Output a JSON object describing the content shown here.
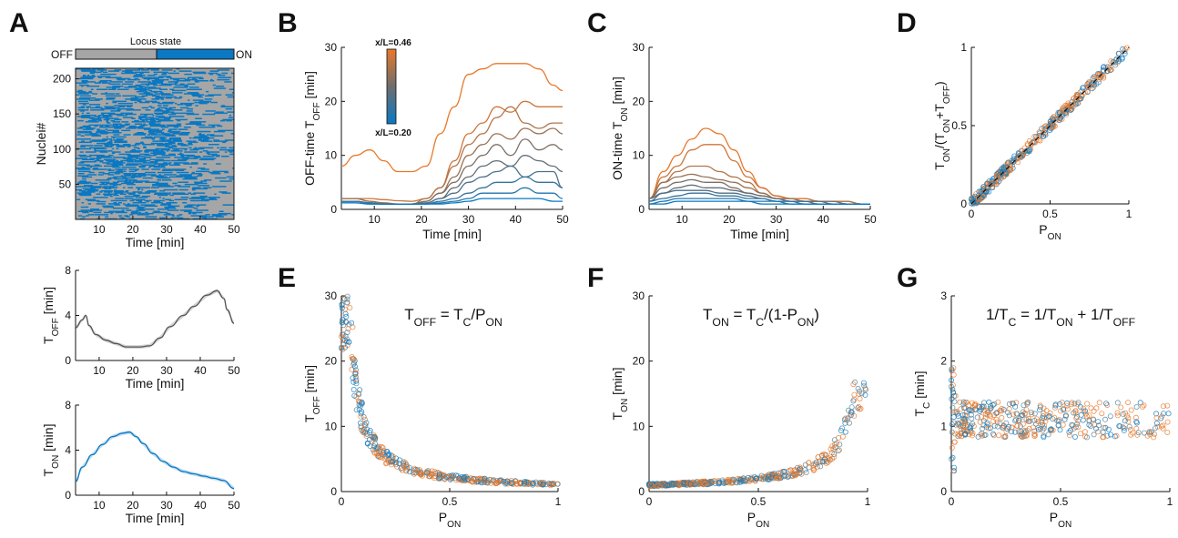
{
  "colors": {
    "off": "#a6a6a6",
    "on": "#0a78c2",
    "orange": "#e8782a",
    "gray_trace": "#555555"
  },
  "panels": {
    "A": {
      "label": "A",
      "state_bar": {
        "title": "Locus state",
        "off_label": "OFF",
        "on_label": "ON"
      },
      "raster": {
        "ylabel": "Nuclei#",
        "xlabel": "Time [min]",
        "xticks": [
          "10",
          "20",
          "30",
          "40",
          "50"
        ],
        "yticks": [
          "50",
          "100",
          "150",
          "200"
        ]
      },
      "toff": {
        "ylabel_main": "T",
        "ylabel_sub": "OFF",
        "ylabel_unit": " [min]",
        "xlabel": "Time [min]",
        "xticks": [
          "10",
          "20",
          "30",
          "40",
          "50"
        ],
        "yticks": [
          "0",
          "4",
          "8"
        ]
      },
      "ton": {
        "ylabel_main": "T",
        "ylabel_sub": "ON",
        "ylabel_unit": " [min]",
        "xlabel": "Time [min]",
        "xticks": [
          "10",
          "20",
          "30",
          "40",
          "50"
        ],
        "yticks": [
          "0",
          "4",
          "8"
        ]
      }
    },
    "B": {
      "label": "B",
      "ylabel_a": "OFF-time T",
      "ylabel_sub": "OFF",
      "ylabel_unit": " [min]",
      "xlabel": "Time [min]",
      "xticks": [
        "10",
        "20",
        "30",
        "40",
        "50"
      ],
      "yticks": [
        "0",
        "10",
        "20",
        "30"
      ],
      "colorbar": {
        "top": "x/L=0.46",
        "bottom": "x/L=0.20"
      }
    },
    "C": {
      "label": "C",
      "ylabel_a": "ON-time T",
      "ylabel_sub": "ON",
      "ylabel_unit": " [min]",
      "xlabel": "Time [min]",
      "xticks": [
        "10",
        "20",
        "30",
        "40",
        "50"
      ],
      "yticks": [
        "0",
        "10",
        "20",
        "30"
      ]
    },
    "D": {
      "label": "D",
      "xlabel_main": "P",
      "xlabel_sub": "ON",
      "xticks": [
        "0",
        "0.5",
        "1"
      ],
      "yticks": [
        "0",
        "0.5",
        "1"
      ],
      "ylabel_parts": [
        "T",
        "ON",
        "/(T",
        "ON",
        "+T",
        "OFF",
        ")"
      ]
    },
    "E": {
      "label": "E",
      "xlabel_main": "P",
      "xlabel_sub": "ON",
      "ylabel_main": "T",
      "ylabel_sub": "OFF",
      "ylabel_unit": " [min]",
      "xticks": [
        "0",
        "0.5",
        "1"
      ],
      "yticks": [
        "0",
        "10",
        "20",
        "30"
      ],
      "equation_parts": [
        "T",
        "OFF",
        " = T",
        "C",
        "/P",
        "ON"
      ]
    },
    "F": {
      "label": "F",
      "xlabel_main": "P",
      "xlabel_sub": "ON",
      "ylabel_main": "T",
      "ylabel_sub": "ON",
      "ylabel_unit": " [min]",
      "xticks": [
        "0",
        "0.5",
        "1"
      ],
      "yticks": [
        "0",
        "10",
        "20",
        "30"
      ],
      "equation_parts": [
        "T",
        "ON",
        " = T",
        "C",
        "/(1-P",
        "ON",
        ")"
      ]
    },
    "G": {
      "label": "G",
      "xlabel_main": "P",
      "xlabel_sub": "ON",
      "ylabel_main": "T",
      "ylabel_sub": "C",
      "ylabel_unit": " [min]",
      "xticks": [
        "0",
        "0.5",
        "1"
      ],
      "yticks": [
        "0",
        "1",
        "2",
        "3"
      ],
      "equation_parts": [
        "1/T",
        "C",
        " = 1/T",
        "ON",
        " + 1/T",
        "OFF"
      ]
    }
  },
  "chart_data": [
    {
      "panel": "A-toff",
      "type": "line",
      "xlim": [
        3,
        50
      ],
      "ylim": [
        0,
        8
      ],
      "x": [
        3,
        5,
        6,
        7,
        9,
        12,
        15,
        18,
        20,
        22,
        25,
        28,
        31,
        35,
        38,
        42,
        45,
        47,
        48,
        50
      ],
      "values": [
        2.9,
        3.6,
        4.0,
        3.1,
        2.3,
        1.8,
        1.5,
        1.2,
        1.2,
        1.2,
        1.3,
        2.0,
        3.0,
        4.0,
        4.8,
        5.8,
        6.2,
        5.5,
        4.5,
        3.3
      ]
    },
    {
      "panel": "A-ton",
      "type": "line",
      "xlim": [
        3,
        50
      ],
      "ylim": [
        0,
        8
      ],
      "x": [
        3,
        5,
        8,
        11,
        14,
        17,
        19,
        21,
        23,
        26,
        29,
        32,
        35,
        38,
        41,
        44,
        47,
        50
      ],
      "values": [
        1.2,
        2.5,
        3.6,
        4.5,
        5.2,
        5.5,
        5.6,
        5.2,
        4.6,
        3.7,
        3.0,
        2.5,
        2.1,
        1.9,
        1.7,
        1.5,
        1.3,
        0.6
      ]
    },
    {
      "panel": "B",
      "type": "line",
      "xlim": [
        3,
        50
      ],
      "ylim": [
        0,
        30
      ],
      "x": [
        3,
        6,
        9,
        12,
        15,
        18,
        21,
        24,
        27,
        30,
        33,
        36,
        39,
        42,
        45,
        48,
        50
      ],
      "series": [
        {
          "values": [
            8,
            10,
            11,
            9,
            7,
            7,
            8,
            14,
            19,
            25,
            26,
            27,
            27,
            27,
            26,
            23,
            22
          ]
        },
        {
          "values": [
            2,
            2,
            2,
            1.8,
            1.6,
            1.5,
            2,
            4,
            9,
            14,
            16,
            19,
            18,
            20,
            19,
            19,
            19
          ]
        },
        {
          "values": [
            2,
            2,
            1.5,
            1.2,
            1,
            1,
            2,
            4,
            8,
            12,
            14,
            17,
            19,
            16,
            15,
            16,
            16
          ]
        },
        {
          "values": [
            2,
            2,
            1.5,
            1.2,
            1,
            1,
            1.5,
            3,
            6,
            10,
            12,
            14,
            13,
            15,
            14,
            15,
            14
          ]
        },
        {
          "values": [
            1.5,
            1.5,
            1.2,
            1,
            1,
            1,
            1.5,
            3,
            5,
            8,
            10,
            12,
            10,
            13,
            11,
            12,
            11
          ]
        },
        {
          "values": [
            1.5,
            1.5,
            1.2,
            1,
            1,
            1,
            1.2,
            2,
            4,
            6,
            8,
            9,
            8,
            10,
            9,
            8,
            7
          ]
        },
        {
          "values": [
            1.5,
            1.5,
            1.2,
            1,
            1,
            1,
            1.2,
            2,
            3,
            5,
            6,
            7,
            8,
            6,
            7,
            7,
            4
          ]
        },
        {
          "values": [
            1.5,
            1.5,
            1.2,
            1,
            1,
            1,
            1,
            1.5,
            2,
            3,
            4,
            5,
            5,
            6,
            5,
            5,
            4
          ]
        },
        {
          "values": [
            1.2,
            1.2,
            1,
            1,
            1,
            1,
            1,
            1.2,
            1.5,
            2,
            3,
            3,
            3,
            4,
            3,
            3,
            2
          ]
        },
        {
          "values": [
            1.2,
            1.2,
            1,
            1,
            1,
            1,
            1,
            1,
            1.2,
            1.5,
            2,
            2,
            2,
            2,
            2,
            1.5,
            1.5
          ]
        }
      ]
    },
    {
      "panel": "C",
      "type": "line",
      "xlim": [
        3,
        50
      ],
      "ylim": [
        0,
        30
      ],
      "x": [
        3,
        6,
        9,
        12,
        15,
        18,
        21,
        24,
        27,
        30,
        33,
        36,
        39,
        42,
        45,
        48,
        50
      ],
      "series": [
        {
          "values": [
            2,
            7,
            10,
            13,
            15,
            14,
            11,
            7,
            4,
            2.5,
            2,
            2,
            1.5,
            1.5,
            1.5,
            1,
            1
          ]
        },
        {
          "values": [
            2,
            6,
            8,
            11,
            12,
            12,
            9,
            6,
            4,
            2.5,
            2,
            2,
            1.5,
            1.5,
            1.5,
            1,
            1
          ]
        },
        {
          "values": [
            2,
            5,
            7,
            8,
            8,
            7,
            6,
            5,
            3,
            2,
            2,
            1.5,
            1.5,
            1.5,
            1.5,
            1,
            1
          ]
        },
        {
          "values": [
            2,
            5,
            6,
            6.5,
            6,
            5.5,
            5,
            4,
            3,
            2,
            2,
            1.5,
            1.5,
            1.5,
            1,
            1,
            1
          ]
        },
        {
          "values": [
            2,
            4,
            5,
            5.5,
            5,
            5,
            4,
            3,
            2.5,
            2,
            1.5,
            1.5,
            1.5,
            1.5,
            1,
            1,
            1
          ]
        },
        {
          "values": [
            2,
            3,
            4,
            4.5,
            4,
            4,
            3.5,
            3,
            2.5,
            2,
            1.5,
            1.5,
            1.5,
            1,
            1,
            1,
            1
          ]
        },
        {
          "values": [
            1.5,
            3,
            3.5,
            3.5,
            3.5,
            3,
            3,
            2.5,
            2,
            1.5,
            1.5,
            1.5,
            1,
            1,
            1,
            1,
            1
          ]
        },
        {
          "values": [
            1.5,
            2,
            2.5,
            3,
            3,
            2.5,
            2.5,
            2,
            2,
            1.5,
            1.5,
            1,
            1,
            1,
            1,
            1,
            1
          ]
        },
        {
          "values": [
            1,
            1.5,
            2,
            2,
            2,
            2,
            2,
            1.5,
            1.5,
            1.5,
            1,
            1,
            1,
            1,
            1,
            1,
            1
          ]
        },
        {
          "values": [
            1,
            1,
            1.5,
            1.5,
            1.5,
            1.5,
            1.5,
            1.5,
            1,
            1,
            1,
            1,
            1,
            1,
            1,
            1,
            1
          ]
        }
      ]
    },
    {
      "panel": "D",
      "type": "scatter",
      "xlim": [
        0,
        1
      ],
      "ylim": [
        0,
        1
      ],
      "reference_line": "y = x (dashed)"
    },
    {
      "panel": "E",
      "type": "scatter",
      "xlim": [
        0,
        1
      ],
      "ylim": [
        0,
        30
      ]
    },
    {
      "panel": "F",
      "type": "scatter",
      "xlim": [
        0,
        1
      ],
      "ylim": [
        0,
        30
      ]
    },
    {
      "panel": "G",
      "type": "scatter",
      "xlim": [
        0,
        1
      ],
      "ylim": [
        0,
        3
      ]
    }
  ]
}
